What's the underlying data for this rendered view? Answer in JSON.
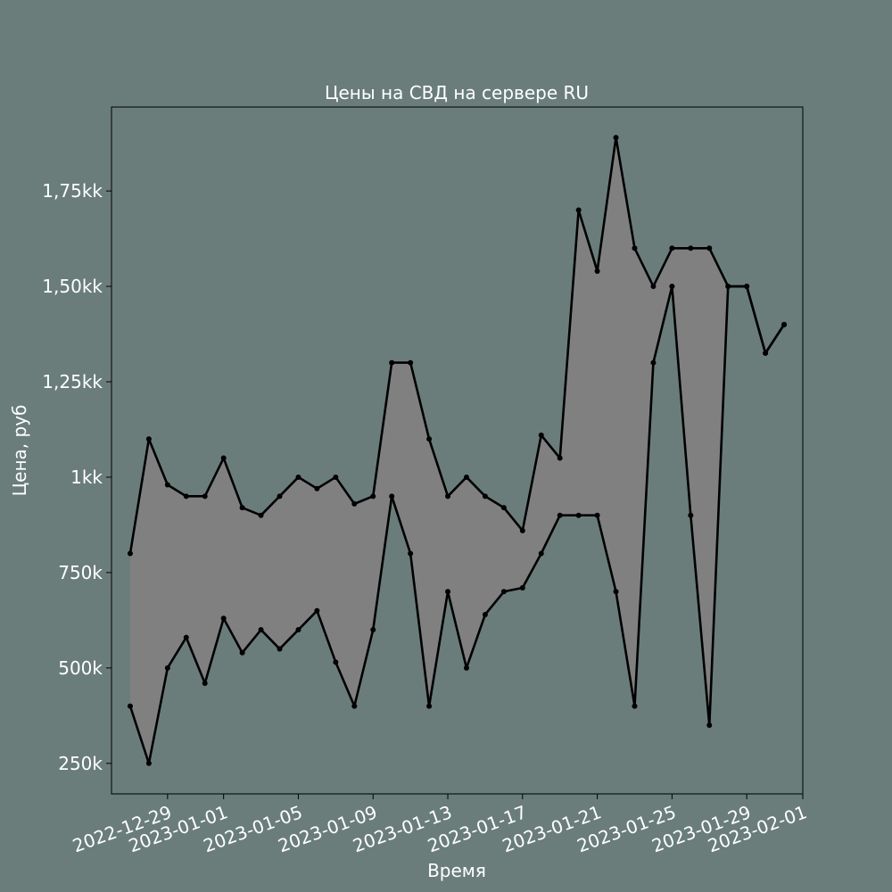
{
  "chart_data": {
    "type": "area",
    "title": "Цены на СВД на сервере RU",
    "xlabel": "Время",
    "ylabel": "Цена, руб",
    "xlim": [
      "2022-12-26",
      "2023-02-01"
    ],
    "ylim": [
      170000,
      1970000
    ],
    "grid": false,
    "legend": "none",
    "colors": {
      "background": "#6a7d7b",
      "fill": "#808080",
      "line": "#000000",
      "text": "#ffffff"
    },
    "x_ticks": [
      {
        "date": "2022-12-29",
        "label": "2022-12-29"
      },
      {
        "date": "2023-01-01",
        "label": "2023-01-01"
      },
      {
        "date": "2023-01-05",
        "label": "2023-01-05"
      },
      {
        "date": "2023-01-09",
        "label": "2023-01-09"
      },
      {
        "date": "2023-01-13",
        "label": "2023-01-13"
      },
      {
        "date": "2023-01-17",
        "label": "2023-01-17"
      },
      {
        "date": "2023-01-21",
        "label": "2023-01-21"
      },
      {
        "date": "2023-01-25",
        "label": "2023-01-25"
      },
      {
        "date": "2023-01-29",
        "label": "2023-01-29"
      },
      {
        "date": "2023-02-01",
        "label": "2023-02-01"
      }
    ],
    "y_ticks": [
      {
        "value": 250000,
        "label": "250k"
      },
      {
        "value": 500000,
        "label": "500k"
      },
      {
        "value": 750000,
        "label": "750k"
      },
      {
        "value": 1000000,
        "label": "1kk"
      },
      {
        "value": 1250000,
        "label": "1,25kk"
      },
      {
        "value": 1500000,
        "label": "1,50kk"
      },
      {
        "value": 1750000,
        "label": "1,75kk"
      }
    ],
    "x": [
      "2022-12-27",
      "2022-12-28",
      "2022-12-29",
      "2022-12-30",
      "2022-12-31",
      "2023-01-01",
      "2023-01-02",
      "2023-01-03",
      "2023-01-04",
      "2023-01-05",
      "2023-01-06",
      "2023-01-07",
      "2023-01-08",
      "2023-01-09",
      "2023-01-10",
      "2023-01-11",
      "2023-01-12",
      "2023-01-13",
      "2023-01-14",
      "2023-01-15",
      "2023-01-16",
      "2023-01-17",
      "2023-01-18",
      "2023-01-19",
      "2023-01-20",
      "2023-01-21",
      "2023-01-22",
      "2023-01-23",
      "2023-01-24",
      "2023-01-25",
      "2023-01-26",
      "2023-01-27",
      "2023-01-28",
      "2023-01-29",
      "2023-01-30",
      "2023-01-31"
    ],
    "series": [
      {
        "role": "max",
        "values": [
          800000,
          1100000,
          980000,
          950000,
          950000,
          1050000,
          920000,
          900000,
          950000,
          1000000,
          970000,
          1000000,
          930000,
          950000,
          1300000,
          1300000,
          1100000,
          950000,
          1000000,
          950000,
          920000,
          860000,
          1110000,
          1050000,
          1700000,
          1540000,
          1890000,
          1600000,
          1500000,
          1600000,
          1600000,
          1600000,
          1500000,
          1500000,
          1325000,
          1400000
        ]
      },
      {
        "role": "min",
        "values": [
          400000,
          250000,
          500000,
          580000,
          460000,
          630000,
          540000,
          600000,
          550000,
          600000,
          650000,
          515000,
          400000,
          600000,
          950000,
          800000,
          400000,
          700000,
          500000,
          640000,
          700000,
          710000,
          800000,
          900000,
          900000,
          900000,
          700000,
          400000,
          1300000,
          1500000,
          900000,
          350000,
          1500000,
          1500000,
          1325000,
          1400000
        ]
      }
    ]
  }
}
